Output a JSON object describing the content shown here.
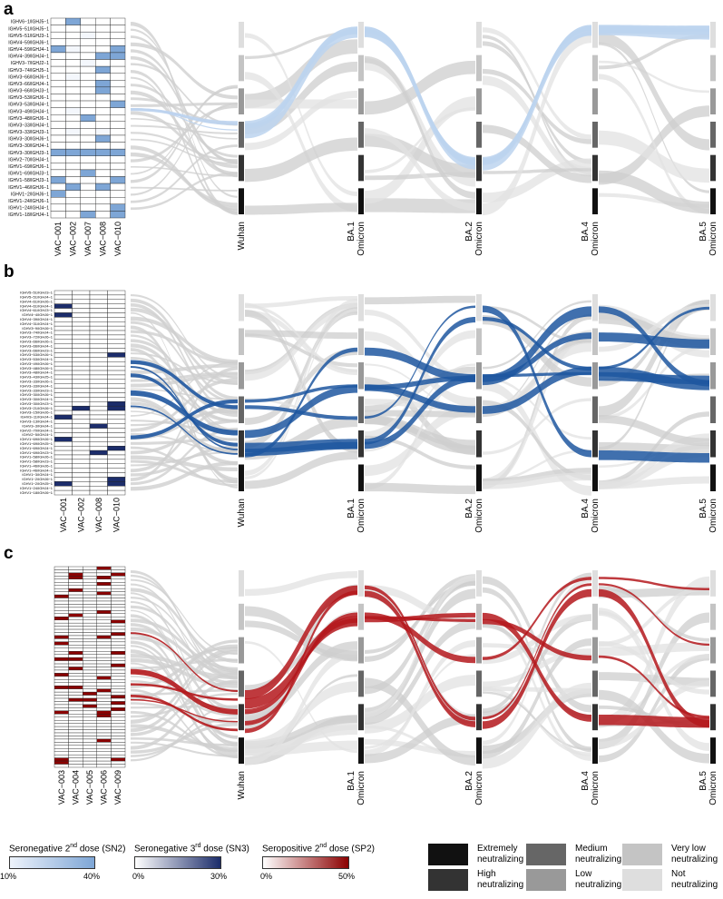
{
  "panels": [
    {
      "letter": "a",
      "genes": [
        "IGHV6−1/IGHJ5−1",
        "IGHV5−51/IGHJ5−1",
        "IGHV5−51/IGHJ3−1",
        "IGHV4−59/IGHJ6−1",
        "IGHV4−59/IGHJ4−1",
        "IGHV4−39/IGHJ4−1",
        "IGHV3−7/IGHJ2−1",
        "IGHV3−74/IGHJ5−1",
        "IGHV3−66/IGHJ6−1",
        "IGHV3−66/IGHJ4−1",
        "IGHV3−66/IGHJ3−1",
        "IGHV3−53/IGHJ6−1",
        "IGHV3−53/IGHJ4−1",
        "IGHV3−49/IGHJ4−1",
        "IGHV3−48/IGHJ6−1",
        "IGHV3−33/IGHJ4−1",
        "IGHV3−33/IGHJ3−1",
        "IGHV3−30/IGHJ6−1",
        "IGHV3−30/IGHJ4−1",
        "IGHV3−30/IGHJ3−1",
        "IGHV2−70/IGHJ4−1",
        "IGHV1−69/IGHJ6−1",
        "IGHV1−69/IGHJ3−1",
        "IGHV1−58/IGHJ3−1",
        "IGHV1−46/IGHJ6−1",
        "IGHV1−2/IGHJ6−1",
        "IGHV1−24/IGHJ6−1",
        "IGHV1−24/IGHJ4−1",
        "IGHV1−18/IGHJ4−1"
      ],
      "donors": [
        "VAC−001",
        "VAC−002",
        "VAC−007",
        "VAC−008",
        "VAC−010"
      ],
      "stages": [
        "Wuhan",
        "Omicron\nBA.1",
        "Omicron\nBA.2",
        "Omicron\nBA.4",
        "Omicron\nBA.5"
      ],
      "highlight": "#bcd3ee"
    },
    {
      "letter": "b",
      "genes": [
        "IGHV5−51/IGHJ3−1",
        "IGHV5−51/IGHJ4−1",
        "IGHV4−61/IGHJ6−1",
        "IGHV4−61/IGHJ4−1",
        "IGHV4−61/IGHJ3−1",
        "IGHV4−4/IGHJ6−1",
        "IGHV4−39/IGHJ4−1",
        "IGHV4−31/IGHJ4−1",
        "IGHV3−9/IGHJ6−1",
        "IGHV3−74/IGHJ4−1",
        "IGHV3−72/IGHJ6−1",
        "IGHV3−66/IGHJ6−1",
        "IGHV3−66/IGHJ4−1",
        "IGHV3−66/IGHJ3−1",
        "IGHV3−53/IGHJ6−1",
        "IGHV3−53/IGHJ4−1",
        "IGHV3−49/IGHJ6−1",
        "IGHV3−48/IGHJ6−1",
        "IGHV3−48/IGHJ4−1",
        "IGHV3−43/IGHJ5−1",
        "IGHV3−33/IGHJ6−1",
        "IGHV3−33/IGHJ4−1",
        "IGHV3−33/IGHJ3−1",
        "IGHV3−30/IGHJ6−1",
        "IGHV3−30/IGHJ4−1",
        "IGHV3−30/IGHJ3−1",
        "IGHV3−21/IGHJ6−1",
        "IGHV3−15/IGHJ6−1",
        "IGHV3−11/IGHJ4−1",
        "IGHV3−13/IGHJ4−1",
        "IGHV3−3/IGHJ4−1",
        "IGHV2−70/IGHJ4−1",
        "IGHV2−5/IGHJ4−1",
        "IGHV1−69/IGHJ6−1",
        "IGHV1−69/IGHJ5−1",
        "IGHV1−69/IGHJ4−1",
        "IGHV1−69/IGHJ3−1",
        "IGHV1−58/IGHJ6−1",
        "IGHV1−58/IGHJ3−1",
        "IGHV1−46/IGHJ6−1",
        "IGHV1−46/IGHJ4−1",
        "IGHV1−3/IGHJ4−1",
        "IGHV1−2/IGHJ6−1",
        "IGHV1−2/IGHJ5−1",
        "IGHV1−24/IGHJ4−1",
        "IGHV1−18/IGHJ6−1"
      ],
      "donors": [
        "VAC−001",
        "VAC−002",
        "VAC−008",
        "VAC−010"
      ],
      "stages": [
        "Wuhan",
        "Omicron\nBA.1",
        "Omicron\nBA.2",
        "Omicron\nBA.4",
        "Omicron\nBA.5"
      ],
      "highlight": "#1f57a0"
    },
    {
      "letter": "c",
      "genes": [],
      "donors": [
        "VAC−003",
        "VAC−004",
        "VAC−005",
        "VAC−006",
        "VAC−009"
      ],
      "stages": [
        "Wuhan",
        "Omicron\nBA.1",
        "Omicron\nBA.2",
        "Omicron\nBA.4",
        "Omicron\nBA.5"
      ],
      "highlight": "#b4181c"
    }
  ],
  "legend": {
    "gradients": [
      {
        "title_pre": "Seronegative ",
        "sup": "nd",
        "ordinal": "2",
        "title_post": " dose (SN2)",
        "min": "10%",
        "max": "40%",
        "from": "#eef3fb",
        "to": "#7ea6d6"
      },
      {
        "title_pre": "Seronegative ",
        "sup": "rd",
        "ordinal": "3",
        "title_post": " dose (SN3)",
        "min": "0%",
        "max": "30%",
        "from": "#ffffff",
        "to": "#1c2d6b"
      },
      {
        "title_pre": "Seropositive ",
        "sup": "nd",
        "ordinal": "2",
        "title_post": " dose (SP2)",
        "min": "0%",
        "max": "50%",
        "from": "#ffffff",
        "to": "#8b0000"
      }
    ],
    "neutralization": [
      {
        "label": "Extremely\nneutralizing",
        "color": "#111111"
      },
      {
        "label": "High\nneutralizing",
        "color": "#333333"
      },
      {
        "label": "Medium\nneutralizing",
        "color": "#666666"
      },
      {
        "label": "Low\nneutralizing",
        "color": "#999999"
      },
      {
        "label": "Very low\nneutralizing",
        "color": "#c4c4c4"
      },
      {
        "label": "Not\nneutralizing",
        "color": "#dedede"
      }
    ]
  }
}
